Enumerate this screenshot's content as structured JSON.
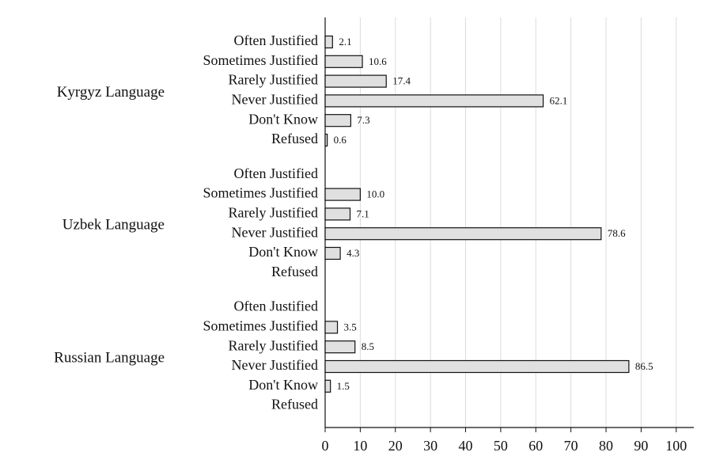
{
  "chart_data": {
    "type": "bar",
    "orientation": "horizontal",
    "groups": [
      {
        "name": "Kyrgyz Language",
        "categories": [
          "Often Justified",
          "Sometimes Justified",
          "Rarely Justified",
          "Never Justified",
          "Don't Know",
          "Refused"
        ],
        "values": [
          2.1,
          10.6,
          17.4,
          62.1,
          7.3,
          0.6
        ],
        "value_labels": [
          "2.1",
          "10.6",
          "17.4",
          "62.1",
          "7.3",
          "0.6"
        ]
      },
      {
        "name": "Uzbek Language",
        "categories": [
          "Often Justified",
          "Sometimes Justified",
          "Rarely Justified",
          "Never Justified",
          "Don't Know",
          "Refused"
        ],
        "values": [
          null,
          10.0,
          7.1,
          78.6,
          4.3,
          null
        ],
        "value_labels": [
          null,
          "10.0",
          "7.1",
          "78.6",
          "4.3",
          null
        ]
      },
      {
        "name": "Russian Language",
        "categories": [
          "Often Justified",
          "Sometimes Justified",
          "Rarely Justified",
          "Never Justified",
          "Don't Know",
          "Refused"
        ],
        "values": [
          null,
          3.5,
          8.5,
          86.5,
          1.5,
          null
        ],
        "value_labels": [
          null,
          "3.5",
          "8.5",
          "86.5",
          "1.5",
          null
        ]
      }
    ],
    "color": "#e0e0e0",
    "xlim": [
      0,
      105
    ],
    "xticks": [
      0,
      10,
      20,
      30,
      40,
      50,
      60,
      70,
      80,
      90,
      100
    ],
    "grid": true
  }
}
